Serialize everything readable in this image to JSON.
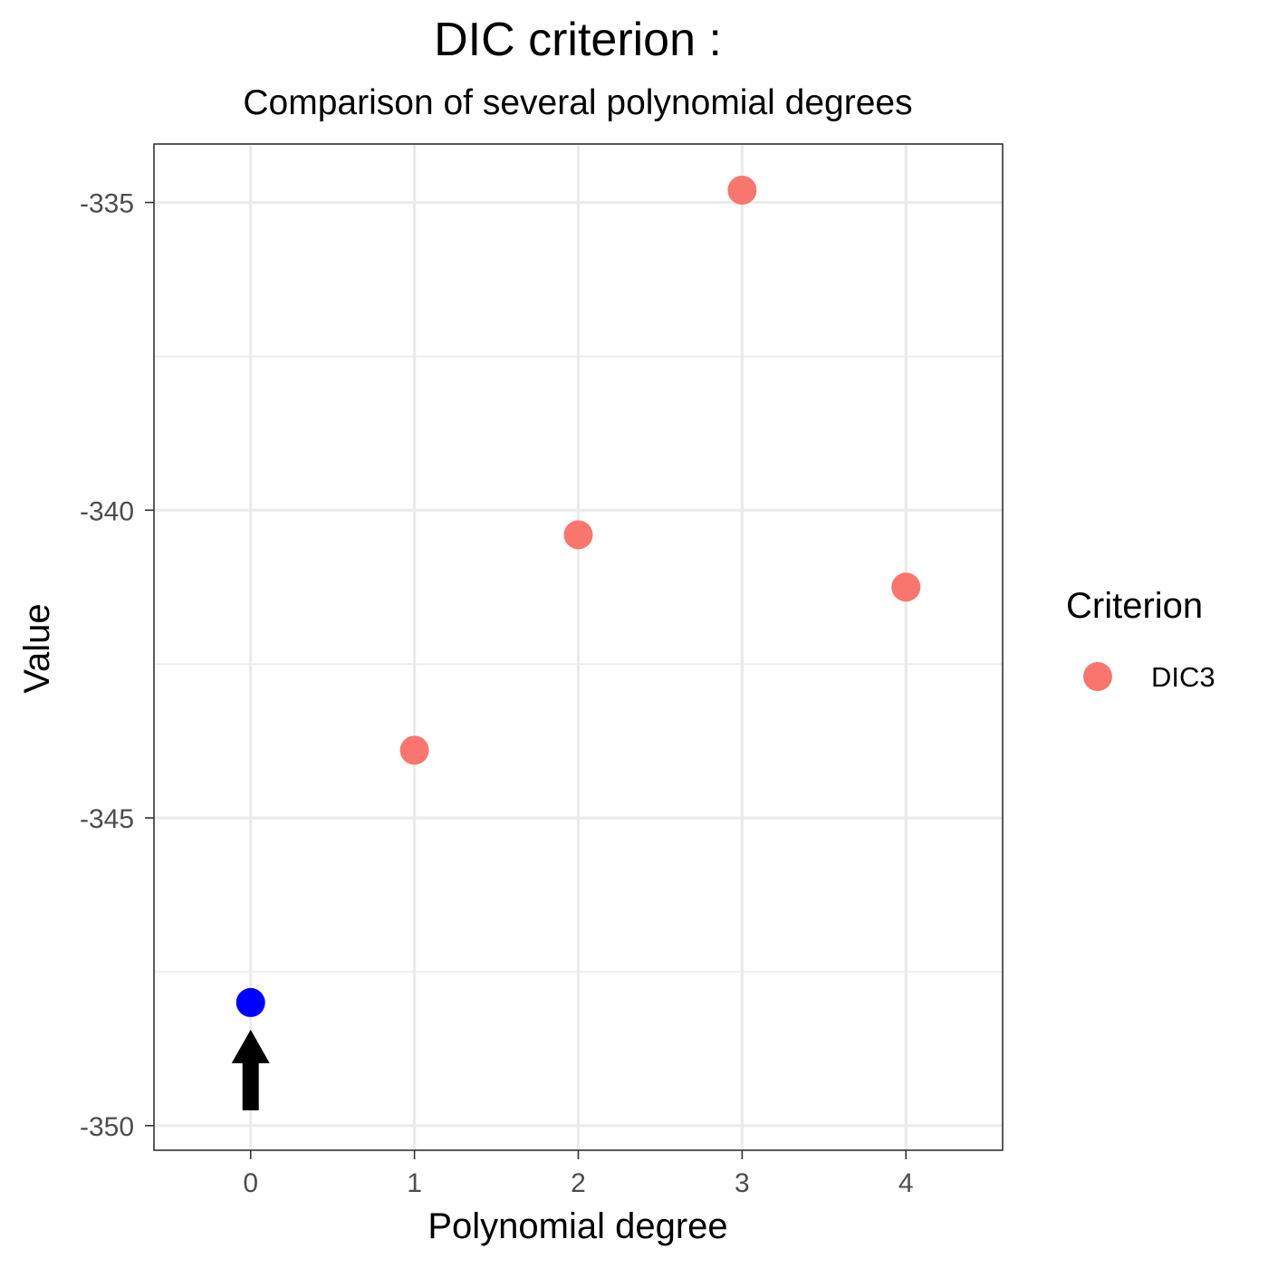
{
  "chart_data": {
    "type": "scatter",
    "title": "DIC criterion :",
    "subtitle": "Comparison of several polynomial degrees",
    "xlabel": "Polynomial degree",
    "ylabel": "Value",
    "xlim": [
      -0.59,
      4.59
    ],
    "ylim": [
      -350.4,
      -334.05
    ],
    "x_ticks": [
      0,
      1,
      2,
      3,
      4
    ],
    "x_tick_labels": [
      "0",
      "1",
      "2",
      "3",
      "4"
    ],
    "y_ticks": [
      -335,
      -340,
      -345,
      -350
    ],
    "y_tick_labels": [
      "-335",
      "-340",
      "-345",
      "-350"
    ],
    "y_minor_ticks": [
      -337.5,
      -342.5,
      -347.5
    ],
    "grid": true,
    "legend_title": "Criterion",
    "legend_position": "right",
    "series": [
      {
        "name": "DIC3",
        "color": "#F8766D",
        "x": [
          1,
          2,
          3,
          4
        ],
        "y": [
          -343.9,
          -340.4,
          -334.8,
          -341.25
        ]
      }
    ],
    "highlight": {
      "x": 0,
      "y": -348.0,
      "color": "#0000FF",
      "marker": "up-arrow"
    }
  }
}
